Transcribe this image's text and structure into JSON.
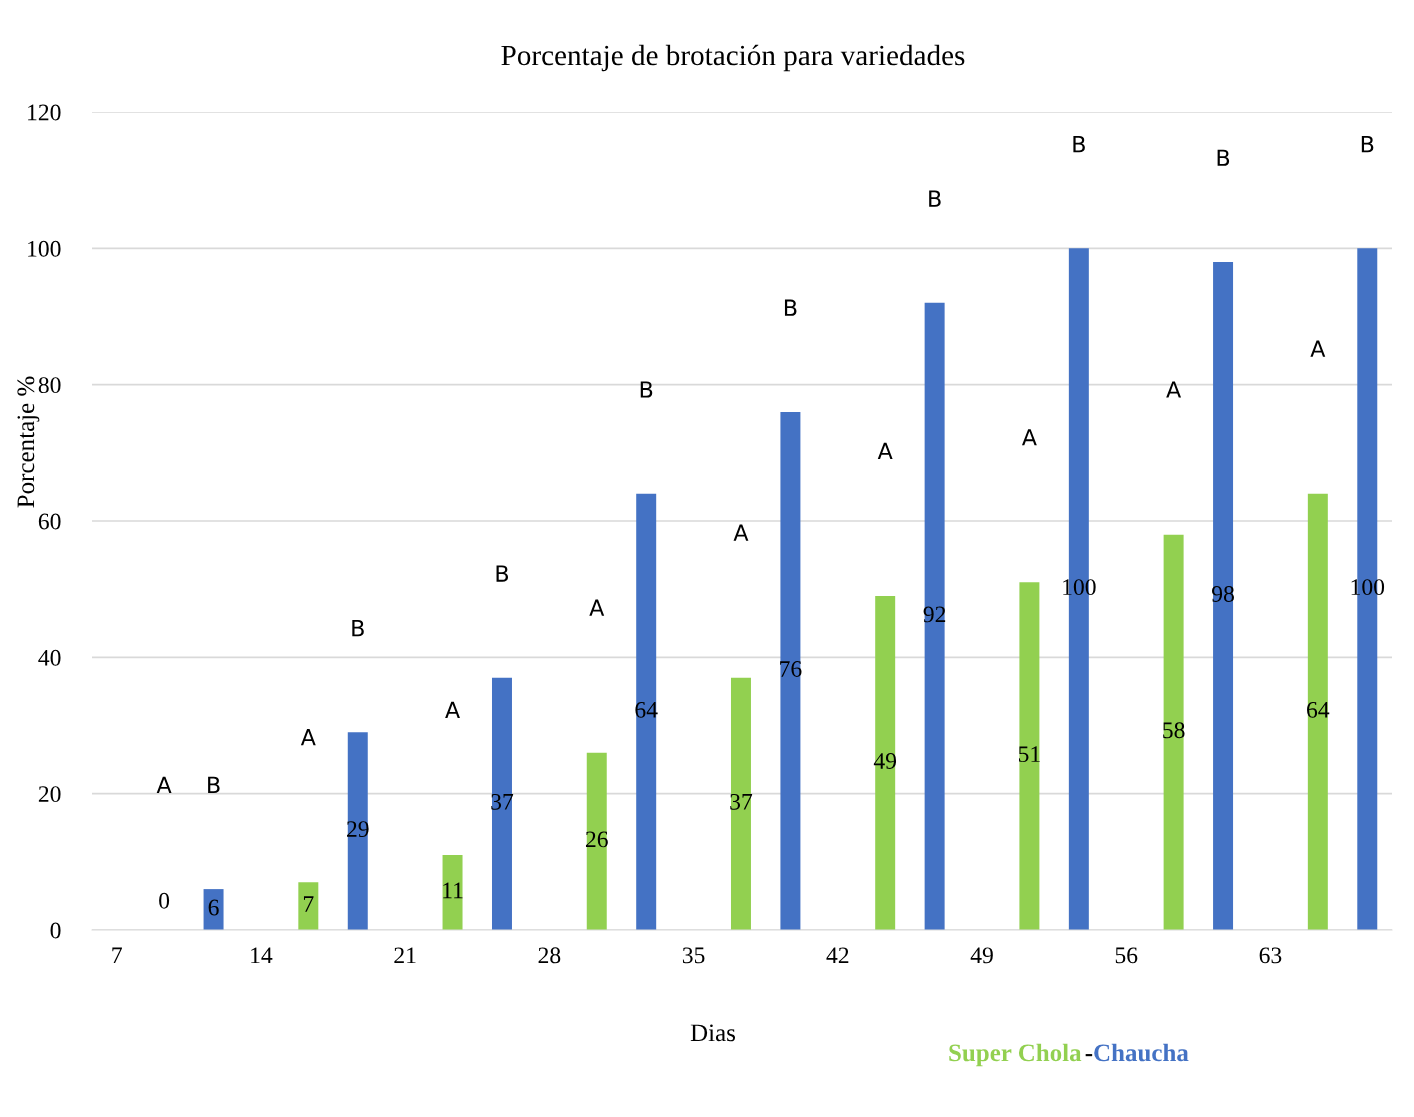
{
  "chart_data": {
    "type": "bar",
    "title": "Porcentaje de brotación para variedades",
    "xlabel": "Dias",
    "ylabel": "Porcentaje %",
    "series": [
      {
        "name": "Super Chola",
        "color": "#92d050",
        "x": [
          9.3,
          16.3,
          23.3,
          30.3,
          37.3,
          44.3,
          51.3,
          58.3,
          65.3
        ],
        "values": [
          0,
          7,
          11,
          26,
          37,
          49,
          51,
          58,
          64
        ]
      },
      {
        "name": "Chaucha",
        "color": "#4472c4",
        "x": [
          11.7,
          18.7,
          25.7,
          32.7,
          39.7,
          46.7,
          53.7,
          60.7,
          67.7
        ],
        "values": [
          6,
          29,
          37,
          64,
          76,
          92,
          100,
          98,
          100
        ]
      }
    ],
    "xlim": [
      5.8,
      68.9
    ],
    "xticks": [
      7,
      14,
      21,
      28,
      35,
      42,
      49,
      56,
      63
    ],
    "ylim": [
      0,
      120
    ],
    "yticks": [
      0,
      20,
      40,
      60,
      80,
      100,
      120
    ],
    "grid": "y",
    "data_labels": true,
    "legend": "bottom right",
    "annotations": [
      "-",
      "A",
      "B",
      "A",
      "B",
      "A",
      "B",
      "A",
      "B",
      "A",
      "B",
      "A",
      "B",
      "A",
      "B",
      "A",
      "B",
      "A",
      "B"
    ]
  }
}
